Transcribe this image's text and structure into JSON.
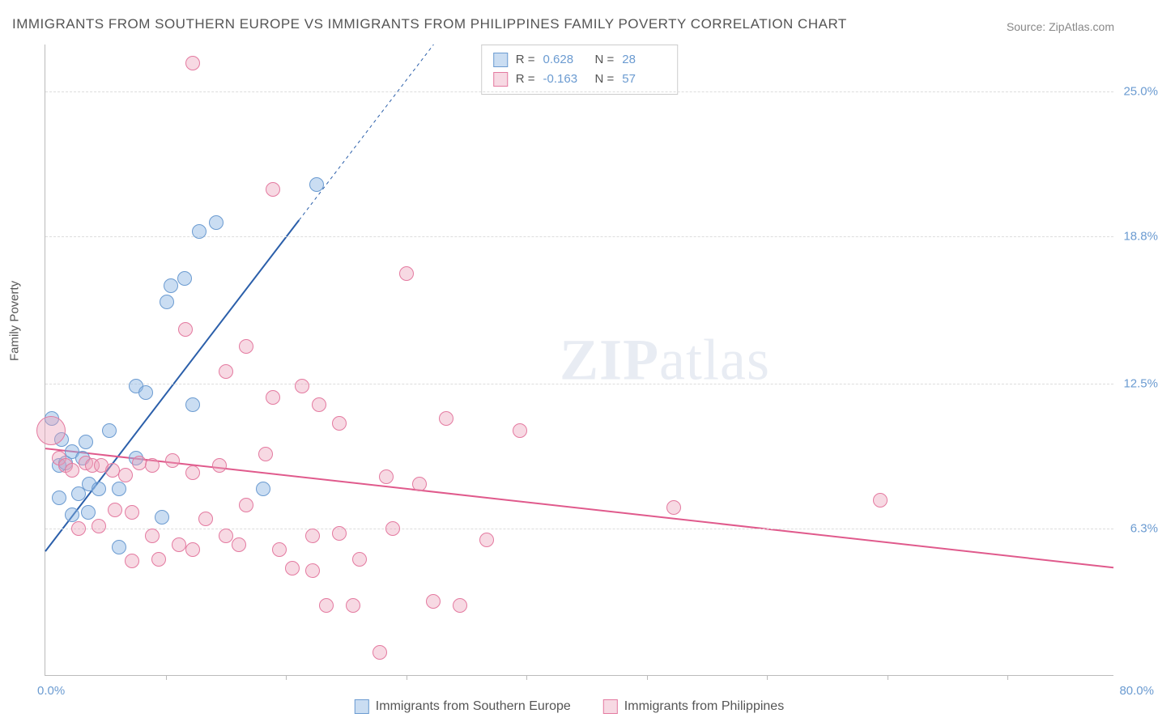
{
  "title": "IMMIGRANTS FROM SOUTHERN EUROPE VS IMMIGRANTS FROM PHILIPPINES FAMILY POVERTY CORRELATION CHART",
  "source": "Source: ZipAtlas.com",
  "y_axis_label": "Family Poverty",
  "watermark": {
    "part1": "ZIP",
    "part2": "atlas"
  },
  "chart": {
    "type": "scatter",
    "xlim": [
      0,
      80
    ],
    "ylim": [
      0,
      27
    ],
    "x_label_min": "0.0%",
    "x_label_max": "80.0%",
    "y_ticks": [
      {
        "value": 6.3,
        "label": "6.3%"
      },
      {
        "value": 12.5,
        "label": "12.5%"
      },
      {
        "value": 18.8,
        "label": "18.8%"
      },
      {
        "value": 25.0,
        "label": "25.0%"
      }
    ],
    "x_tick_positions": [
      9,
      18,
      27,
      36,
      45,
      54,
      63,
      72
    ],
    "background_color": "#ffffff",
    "grid_color": "#dddddd",
    "axis_color": "#bbbbbb",
    "tick_label_color": "#6b9bd1",
    "series": [
      {
        "id": "southern_europe",
        "label": "Immigrants from Southern Europe",
        "marker_fill": "rgba(138,180,226,0.45)",
        "marker_stroke": "#6b9bd1",
        "marker_radius": 9,
        "trend": {
          "x1": 0,
          "y1": 5.3,
          "x2": 80,
          "y2": 65,
          "solid_until_x": 19,
          "color": "#2b5faa",
          "width": 2
        },
        "stats": {
          "R": "0.628",
          "N": "28"
        },
        "points": [
          [
            1.2,
            10.1
          ],
          [
            1.0,
            9.0
          ],
          [
            1.5,
            9.1
          ],
          [
            2.0,
            9.6
          ],
          [
            2.8,
            9.3
          ],
          [
            1.0,
            7.6
          ],
          [
            2.5,
            7.8
          ],
          [
            3.3,
            8.2
          ],
          [
            4.0,
            8.0
          ],
          [
            5.5,
            8.0
          ],
          [
            2.0,
            6.9
          ],
          [
            3.0,
            10.0
          ],
          [
            4.8,
            10.5
          ],
          [
            6.8,
            9.3
          ],
          [
            6.8,
            12.4
          ],
          [
            7.5,
            12.1
          ],
          [
            11.0,
            11.6
          ],
          [
            9.4,
            16.7
          ],
          [
            10.4,
            17.0
          ],
          [
            11.5,
            19.0
          ],
          [
            12.8,
            19.4
          ],
          [
            9.1,
            16.0
          ],
          [
            16.3,
            8.0
          ],
          [
            5.5,
            5.5
          ],
          [
            3.2,
            7.0
          ],
          [
            8.7,
            6.8
          ],
          [
            20.3,
            21.0
          ],
          [
            0.5,
            11.0
          ]
        ]
      },
      {
        "id": "philippines",
        "label": "Immigrants from Philippines",
        "marker_fill": "rgba(236,160,186,0.40)",
        "marker_stroke": "#e47aa0",
        "marker_radius": 9,
        "trend": {
          "x1": 0,
          "y1": 9.7,
          "x2": 80,
          "y2": 4.6,
          "solid_until_x": 80,
          "color": "#e05a8c",
          "width": 2
        },
        "stats": {
          "R": "-0.163",
          "N": "57"
        },
        "points": [
          [
            0.4,
            10.5,
            18
          ],
          [
            1.0,
            9.3
          ],
          [
            1.5,
            9.0
          ],
          [
            2.0,
            8.8
          ],
          [
            3.0,
            9.1
          ],
          [
            3.5,
            9.0
          ],
          [
            4.2,
            9.0
          ],
          [
            5.0,
            8.8
          ],
          [
            6.0,
            8.6
          ],
          [
            7.0,
            9.1
          ],
          [
            8.0,
            9.0
          ],
          [
            9.5,
            9.2
          ],
          [
            11.0,
            8.7
          ],
          [
            13.0,
            9.0
          ],
          [
            5.2,
            7.1
          ],
          [
            6.5,
            7.0
          ],
          [
            8.0,
            6.0
          ],
          [
            15.0,
            7.3
          ],
          [
            12.0,
            6.7
          ],
          [
            10.0,
            5.6
          ],
          [
            11.0,
            5.4
          ],
          [
            13.5,
            6.0
          ],
          [
            14.5,
            5.6
          ],
          [
            17.5,
            5.4
          ],
          [
            20.0,
            6.0
          ],
          [
            22.0,
            6.1
          ],
          [
            23.5,
            5.0
          ],
          [
            26.0,
            6.3
          ],
          [
            18.5,
            4.6
          ],
          [
            20.0,
            4.5
          ],
          [
            21.0,
            3.0
          ],
          [
            23.0,
            3.0
          ],
          [
            25.0,
            1.0
          ],
          [
            29.0,
            3.2
          ],
          [
            31.0,
            3.0
          ],
          [
            17.0,
            11.9
          ],
          [
            19.2,
            12.4
          ],
          [
            20.5,
            11.6
          ],
          [
            22.0,
            10.8
          ],
          [
            30.0,
            11.0
          ],
          [
            27.0,
            17.2
          ],
          [
            25.5,
            8.5
          ],
          [
            15.0,
            14.1
          ],
          [
            10.5,
            14.8
          ],
          [
            11.0,
            26.2
          ],
          [
            17.0,
            20.8
          ],
          [
            47.0,
            7.2
          ],
          [
            62.5,
            7.5
          ],
          [
            2.5,
            6.3
          ],
          [
            4.0,
            6.4
          ],
          [
            6.5,
            4.9
          ],
          [
            8.5,
            5.0
          ],
          [
            33.0,
            5.8
          ],
          [
            35.5,
            10.5
          ],
          [
            13.5,
            13.0
          ],
          [
            16.5,
            9.5
          ],
          [
            28.0,
            8.2
          ]
        ]
      }
    ]
  },
  "legend_labels": {
    "r_label": "R  =",
    "n_label": "N  ="
  }
}
